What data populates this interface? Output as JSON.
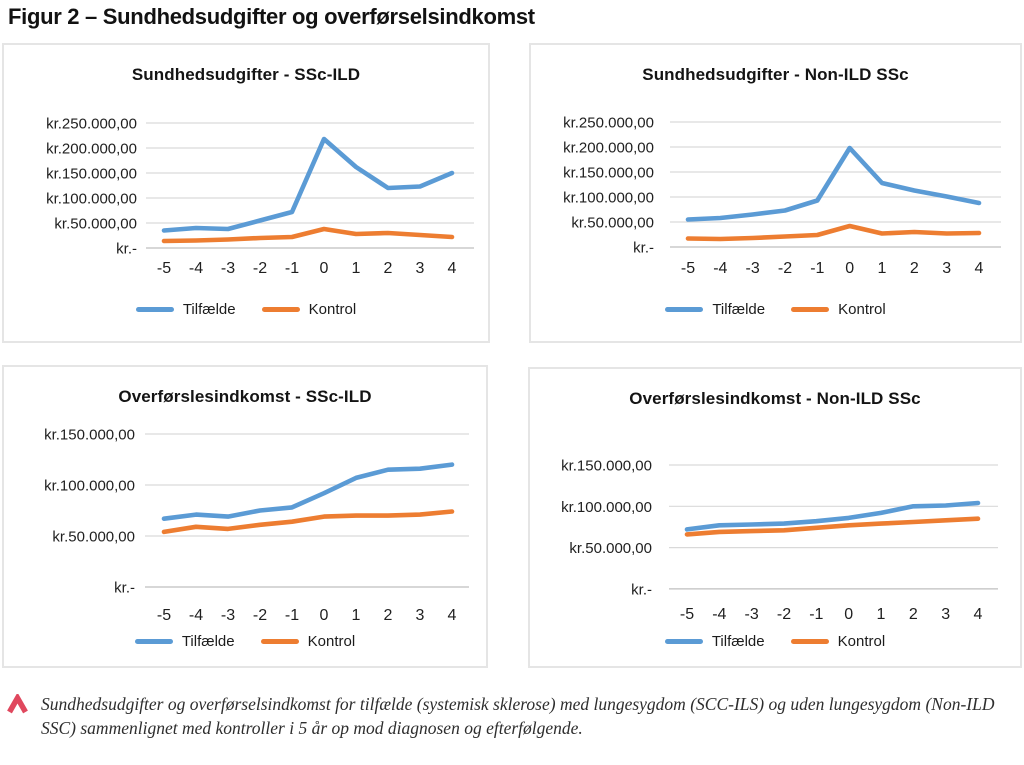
{
  "page_title": "Figur 2 – Sundhedsudgifter og overførselsindkomst",
  "caption": {
    "icon": "chevron-up-icon",
    "icon_color": "#E0485E",
    "text": "Sundhedsudgifter og overførselsindkomst for tilfælde (systemisk sklerose) med lungesygdom (SCC-ILS) og uden lungesygdom (Non-ILD SSC) sammenlignet med kontroller i 5 år op mod diagnosen og efterfølgende."
  },
  "colors": {
    "tilfaelde": "#5B9BD5",
    "kontrol": "#ED7D31",
    "gridline": "#D9D9D9",
    "axisline": "#BFBFBF"
  },
  "chart_data": [
    {
      "type": "line",
      "title": "Sundhedsudgifter - SSc-ILD",
      "x": [
        -5,
        -4,
        -3,
        -2,
        -1,
        0,
        1,
        2,
        3,
        4
      ],
      "x_labels": [
        "-5",
        "-4",
        "-3",
        "-2",
        "-1",
        "0",
        "1",
        "2",
        "3",
        "4"
      ],
      "y_ticks": [
        "kr.250.000,00",
        "kr.200.000,00",
        "kr.150.000,00",
        "kr.100.000,00",
        "kr.50.000,00",
        "kr.-"
      ],
      "ylim": [
        0,
        250000
      ],
      "grid": true,
      "legend_position": "bottom",
      "series": [
        {
          "name": "Tilfælde",
          "color": "#5B9BD5",
          "values": [
            35000,
            40000,
            38000,
            55000,
            72000,
            218000,
            162000,
            120000,
            123000,
            150000
          ]
        },
        {
          "name": "Kontrol",
          "color": "#ED7D31",
          "values": [
            14000,
            15000,
            17000,
            20000,
            22000,
            38000,
            28000,
            30000,
            26000,
            22000
          ]
        }
      ]
    },
    {
      "type": "line",
      "title": "Sundhedsudgifter - Non-ILD SSc",
      "x": [
        -5,
        -4,
        -3,
        -2,
        -1,
        0,
        1,
        2,
        3,
        4
      ],
      "x_labels": [
        "-5",
        "-4",
        "-3",
        "-2",
        "-1",
        "0",
        "1",
        "2",
        "3",
        "4"
      ],
      "y_ticks": [
        "kr.250.000,00",
        "kr.200.000,00",
        "kr.150.000,00",
        "kr.100.000,00",
        "kr.50.000,00",
        "kr.-"
      ],
      "ylim": [
        0,
        250000
      ],
      "grid": true,
      "legend_position": "bottom",
      "series": [
        {
          "name": "Tilfælde",
          "color": "#5B9BD5",
          "values": [
            55000,
            58000,
            65000,
            73000,
            93000,
            198000,
            128000,
            113000,
            101000,
            88000
          ]
        },
        {
          "name": "Kontrol",
          "color": "#ED7D31",
          "values": [
            17000,
            16000,
            18000,
            21000,
            24000,
            42000,
            27000,
            30000,
            27000,
            28000
          ]
        }
      ]
    },
    {
      "type": "line",
      "title": "Overførslesindkomst - SSc-ILD",
      "x": [
        -5,
        -4,
        -3,
        -2,
        -1,
        0,
        1,
        2,
        3,
        4
      ],
      "x_labels": [
        "-5",
        "-4",
        "-3",
        "-2",
        "-1",
        "0",
        "1",
        "2",
        "3",
        "4"
      ],
      "y_ticks": [
        "kr.150.000,00",
        "kr.100.000,00",
        "kr.50.000,00",
        "kr.-"
      ],
      "ylim": [
        0,
        150000
      ],
      "grid": true,
      "legend_position": "bottom",
      "series": [
        {
          "name": "Tilfælde",
          "color": "#5B9BD5",
          "values": [
            67000,
            71000,
            69000,
            75000,
            78000,
            92000,
            107000,
            115000,
            116000,
            120000
          ]
        },
        {
          "name": "Kontrol",
          "color": "#ED7D31",
          "values": [
            54000,
            59000,
            57000,
            61000,
            64000,
            69000,
            70000,
            70000,
            71000,
            74000
          ]
        }
      ]
    },
    {
      "type": "line",
      "title": "Overførslesindkomst - Non-ILD SSc",
      "x": [
        -5,
        -4,
        -3,
        -2,
        -1,
        0,
        1,
        2,
        3,
        4
      ],
      "x_labels": [
        "-5",
        "-4",
        "-3",
        "-2",
        "-1",
        "0",
        "1",
        "2",
        "3",
        "4"
      ],
      "y_ticks": [
        "kr.150.000,00",
        "kr.100.000,00",
        "kr.50.000,00",
        "kr.-"
      ],
      "ylim": [
        0,
        150000
      ],
      "grid": true,
      "legend_position": "bottom",
      "series": [
        {
          "name": "Tilfælde",
          "color": "#5B9BD5",
          "values": [
            72000,
            77000,
            78000,
            79000,
            82000,
            86000,
            92000,
            100000,
            101000,
            104000
          ]
        },
        {
          "name": "Kontrol",
          "color": "#ED7D31",
          "values": [
            66000,
            69000,
            70000,
            71000,
            74000,
            77000,
            79000,
            81000,
            83000,
            85000
          ]
        }
      ]
    }
  ]
}
